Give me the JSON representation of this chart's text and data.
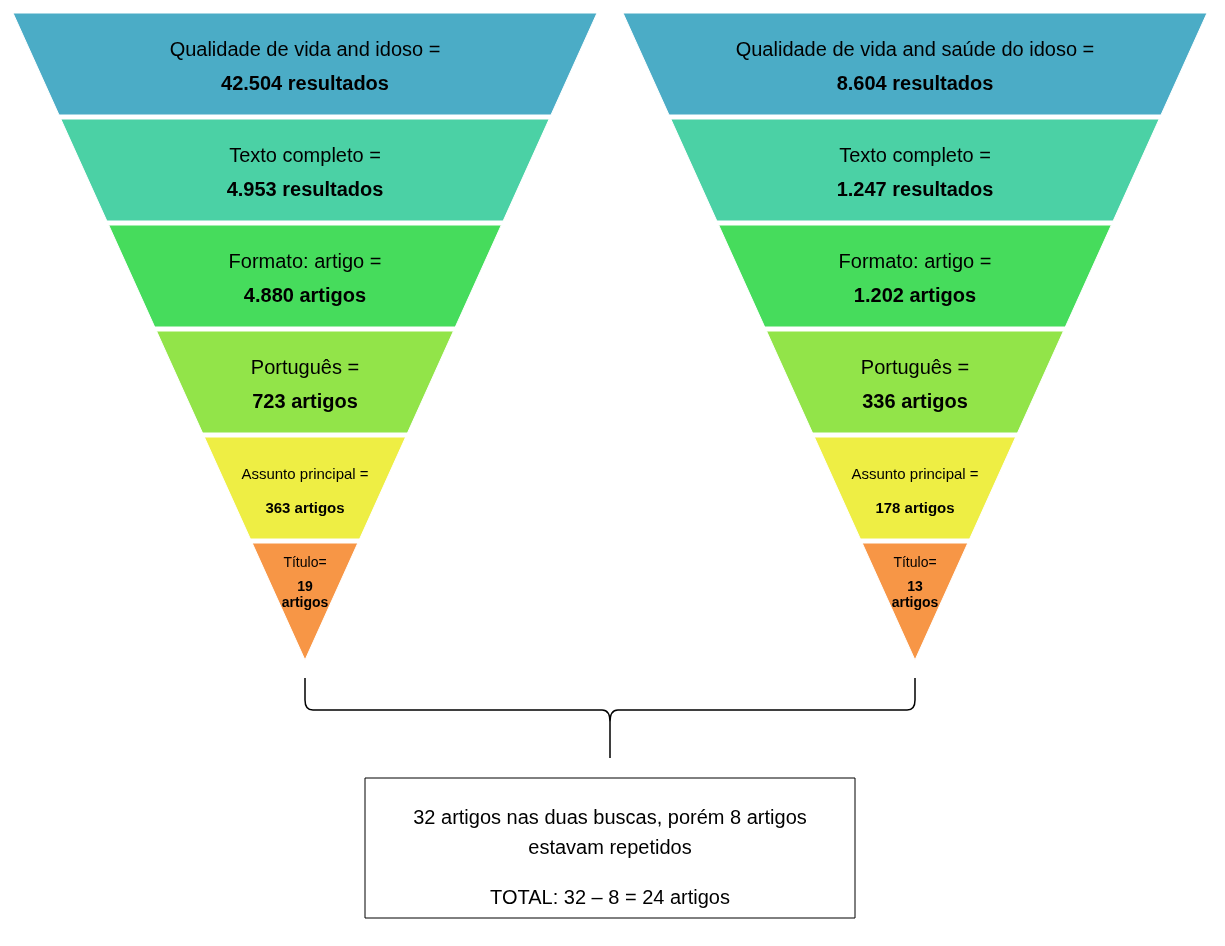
{
  "chart_data": [
    {
      "type": "other",
      "categories": [
        "Qualidade de vida and idoso =",
        "Texto completo =",
        "Formato: artigo =",
        "Português =",
        "Assunto principal =",
        "Título="
      ],
      "values": [
        42504,
        4953,
        4880,
        723,
        363,
        19
      ],
      "value_labels": [
        "42.504 resultados",
        "4.953 resultados",
        "4.880 artigos",
        "723 artigos",
        "363 artigos",
        "19 artigos"
      ],
      "colors": [
        "#4bacc6",
        "#4bd1a5",
        "#46dc5c",
        "#92e449",
        "#eeee44",
        "#f79646"
      ]
    },
    {
      "type": "other",
      "categories": [
        "Qualidade de vida and saúde do idoso =",
        "Texto completo =",
        "Formato: artigo =",
        "Português =",
        "Assunto principal =",
        "Título="
      ],
      "values": [
        8604,
        1247,
        1202,
        336,
        178,
        13
      ],
      "value_labels": [
        "8.604 resultados",
        "1.247 resultados",
        "1.202 artigos",
        "336 artigos",
        "178 artigos",
        "13 artigos"
      ],
      "colors": [
        "#4bacc6",
        "#4bd1a5",
        "#46dc5c",
        "#92e449",
        "#eeee44",
        "#f79646"
      ]
    },
    {
      "type": "other",
      "annotations": [
        "32 artigos nas duas buscas, porém 8 artigos estavam repetidos",
        "TOTAL: 32 – 8 = 24 artigos"
      ]
    }
  ]
}
